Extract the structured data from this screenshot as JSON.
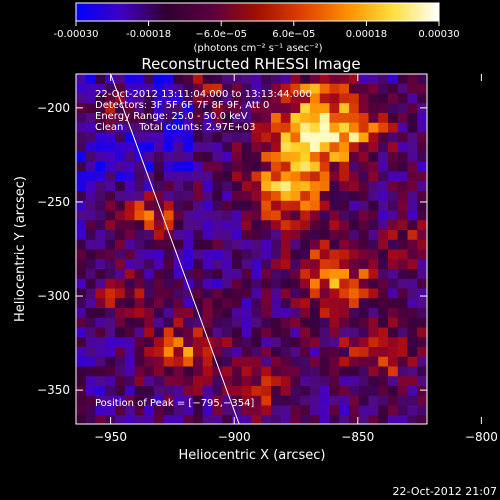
{
  "colorbar": {
    "ticks": [
      "-0.00030",
      "-0.00018",
      "−6.0e−05",
      "6.0e−05",
      "0.00018",
      "0.00030"
    ],
    "tick_values": [
      -0.0003,
      -0.00018,
      -6e-05,
      6e-05,
      0.00018,
      0.0003
    ],
    "range": [
      -0.0003,
      0.0003
    ],
    "units": "(photons cm⁻² s⁻¹ asec⁻²)",
    "colors": [
      "#0000ff",
      "#4000c0",
      "#300030",
      "#5a0040",
      "#a01000",
      "#e04000",
      "#ff9000",
      "#ffe040",
      "#ffffff"
    ]
  },
  "chart_data": {
    "type": "heatmap",
    "title": "Reconstructed RHESSI Image",
    "xlabel": "Heliocentric X (arcsec)",
    "ylabel": "Heliocentric Y (arcsec)",
    "xlim": [
      -964,
      -822
    ],
    "ylim": [
      -368,
      -182
    ],
    "xticks": [
      -950,
      -900,
      -850,
      -800
    ],
    "yticks": [
      -200,
      -250,
      -300,
      -350
    ],
    "annotations": [
      "22-Oct-2012 13:11:04.000 to 13:13:44.000",
      "Detectors: 3F 5F 6F 7F 8F 9F, Att 0",
      "Energy Range: 25.0 - 50.0 keV",
      "Clean     Total counts: 2.97E+03"
    ],
    "peak_label": "Position of Peak = [−795,−354]",
    "peak": [
      -795,
      -354
    ],
    "limb_line": [
      [
        -950,
        -182
      ],
      [
        -898,
        -368
      ]
    ],
    "footer": "22-Oct-2012 21:07",
    "grid": false,
    "legend": "none"
  }
}
